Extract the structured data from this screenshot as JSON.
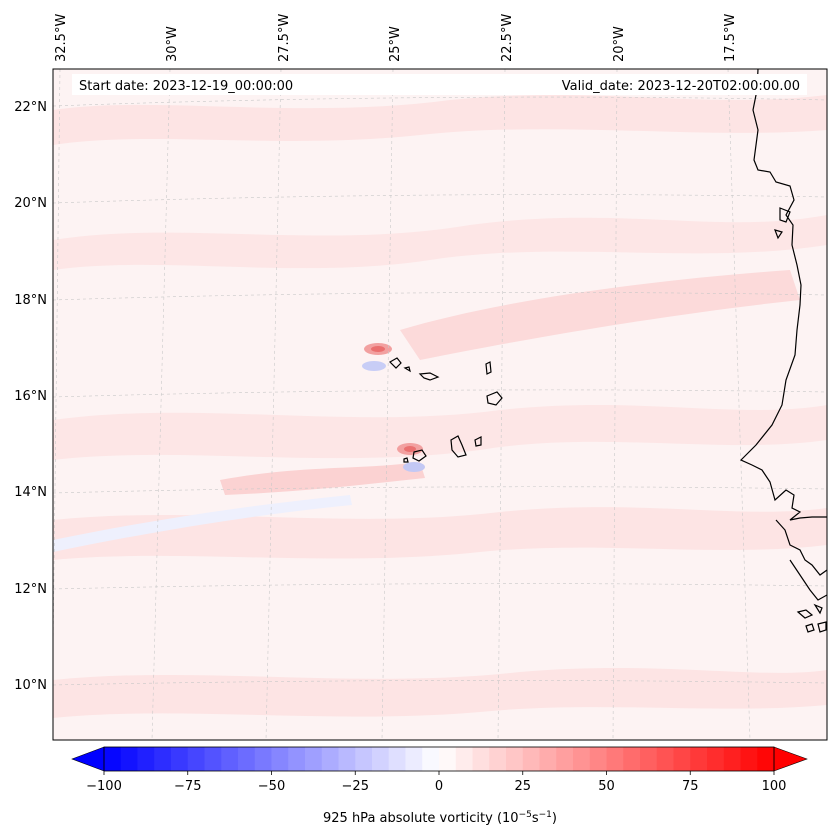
{
  "map": {
    "start_label": "Start date: 2023-12-19_00:00:00",
    "valid_label": "Valid_date: 2023-12-20T02:00:00.00",
    "lon_labels": [
      "32.5°W",
      "30°W",
      "27.5°W",
      "25°W",
      "22.5°W",
      "20°W",
      "17.5°W"
    ],
    "lat_labels": [
      "22°N",
      "20°N",
      "18°N",
      "16°N",
      "14°N",
      "12°N",
      "10°N"
    ],
    "background_color": "#fdf3f3",
    "coastline_color": "#000000"
  },
  "colorbar": {
    "title_main": "925 hPa absolute vorticity (10",
    "title_exp1": "−5",
    "title_mid": "s",
    "title_exp2": "−1",
    "title_end": ")",
    "tick_labels": [
      "−100",
      "−75",
      "−50",
      "−25",
      "0",
      "25",
      "50",
      "75",
      "100"
    ],
    "min": -100,
    "max": 100,
    "step": 5,
    "negative_color": "#0000ff",
    "positive_color": "#ff0000",
    "neutral_color": "#ffffff"
  }
}
